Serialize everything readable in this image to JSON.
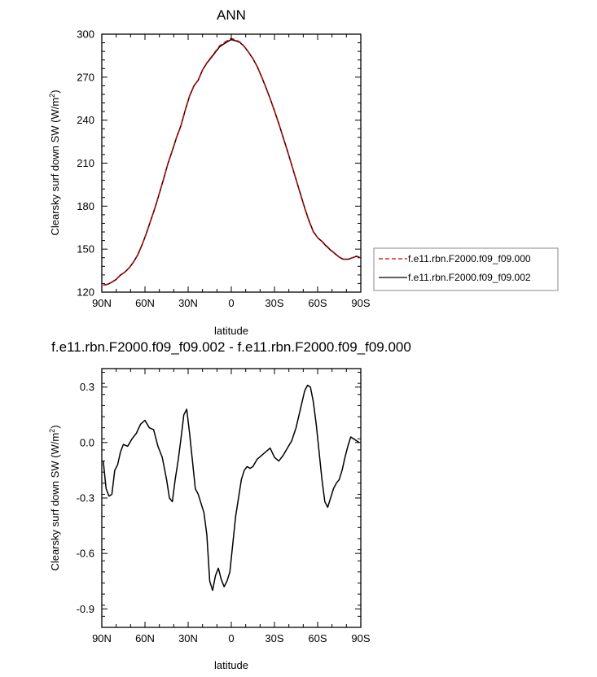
{
  "chart_data": [
    {
      "type": "line",
      "title": "ANN",
      "xlabel": "latitude",
      "ylabel_main": "Clearsky surf down SW (W/m",
      "ylabel_sup": "2",
      "ylabel_end": ")",
      "xlim": [
        90,
        -90
      ],
      "ylim": [
        120,
        300
      ],
      "xticks": [
        90,
        60,
        30,
        0,
        -30,
        -60,
        -90
      ],
      "xtick_labels": [
        "90N",
        "60N",
        "30N",
        "0",
        "30S",
        "60S",
        "90S"
      ],
      "yticks": [
        120,
        150,
        180,
        210,
        240,
        270,
        300
      ],
      "ytick_labels": [
        "120",
        "150",
        "180",
        "210",
        "240",
        "270",
        "300"
      ],
      "legend_position": "right",
      "series": [
        {
          "name": "f.e11.rbn.F2000.f09_f09.000",
          "color": "#cc0000",
          "dash": "dashed",
          "x": [
            89,
            86,
            83,
            80,
            77,
            74,
            71,
            68,
            65,
            62,
            59,
            56,
            53,
            50,
            47,
            44,
            41,
            38,
            35,
            32,
            29,
            26,
            23,
            20,
            17,
            14,
            11,
            8,
            5,
            2,
            0,
            -3,
            -6,
            -9,
            -12,
            -15,
            -18,
            -21,
            -24,
            -27,
            -30,
            -33,
            -36,
            -39,
            -42,
            -45,
            -48,
            -51,
            -54,
            -57,
            -60,
            -63,
            -66,
            -69,
            -72,
            -75,
            -78,
            -81,
            -84,
            -87,
            -89
          ],
          "y": [
            125,
            125.5,
            127,
            129,
            132,
            134,
            137,
            141,
            146,
            153,
            161,
            170,
            179,
            189,
            199,
            210,
            219,
            228,
            236,
            247,
            257,
            264,
            268,
            275,
            280,
            284,
            288,
            292,
            294,
            296,
            297,
            296,
            294.5,
            291.5,
            287.5,
            283,
            277.5,
            270.5,
            263,
            255,
            246.5,
            237.5,
            228,
            218.5,
            208.5,
            198.5,
            188.5,
            178.5,
            169.5,
            162,
            158,
            155.5,
            152.5,
            149.5,
            147,
            144.5,
            143,
            143,
            144,
            145,
            144.5
          ]
        },
        {
          "name": "f.e11.rbn.F2000.f09_f09.002",
          "color": "#000000",
          "dash": "solid",
          "x": [
            89,
            86,
            83,
            80,
            77,
            74,
            71,
            68,
            65,
            62,
            59,
            56,
            53,
            50,
            47,
            44,
            41,
            38,
            35,
            32,
            29,
            26,
            23,
            20,
            17,
            14,
            11,
            8,
            5,
            2,
            0,
            -3,
            -6,
            -9,
            -12,
            -15,
            -18,
            -21,
            -24,
            -27,
            -30,
            -33,
            -36,
            -39,
            -42,
            -45,
            -48,
            -51,
            -54,
            -57,
            -60,
            -63,
            -66,
            -69,
            -72,
            -75,
            -78,
            -81,
            -84,
            -87,
            -89
          ],
          "y": [
            124.9,
            125.4,
            126.9,
            128.9,
            131.9,
            133.9,
            136.9,
            140.9,
            146.1,
            153.1,
            161.1,
            170.1,
            178.9,
            188.9,
            199.2,
            209.8,
            218.7,
            228.1,
            236.2,
            247.1,
            256.8,
            263.9,
            267.9,
            275,
            279.8,
            283.6,
            287.5,
            291.3,
            293.3,
            295.2,
            296.2,
            295.4,
            294.2,
            291.4,
            287.4,
            282.9,
            277.4,
            270.4,
            262.9,
            255,
            246.5,
            237.6,
            228.1,
            218.6,
            208.6,
            198.6,
            188.7,
            178.8,
            169.8,
            162.3,
            158,
            155.3,
            152.1,
            149.3,
            146.9,
            144.4,
            142.9,
            142.9,
            143.9,
            145,
            144.5
          ]
        }
      ]
    },
    {
      "type": "line",
      "title": "f.e11.rbn.F2000.f09_f09.002 - f.e11.rbn.F2000.f09_f09.000",
      "xlabel": "latitude",
      "ylabel_main": "Clearsky surf down SW (W/m",
      "ylabel_sup": "2",
      "ylabel_end": ")",
      "xlim": [
        90,
        -90
      ],
      "ylim": [
        -1.0,
        0.4
      ],
      "xticks": [
        90,
        60,
        30,
        0,
        -30,
        -60,
        -90
      ],
      "xtick_labels": [
        "90N",
        "60N",
        "30N",
        "0",
        "30S",
        "60S",
        "90S"
      ],
      "yticks": [
        -0.9,
        -0.6,
        -0.3,
        0.0,
        0.3
      ],
      "ytick_labels": [
        "-0.9",
        "-0.6",
        "-0.3",
        "0.0",
        "0.3"
      ],
      "series": [
        {
          "color": "#000000",
          "dash": "solid",
          "x": [
            89,
            87,
            85,
            83,
            81,
            79,
            77,
            75,
            72,
            69,
            66,
            63,
            60,
            57,
            54,
            51,
            48,
            45,
            43,
            41,
            39,
            37,
            35,
            33,
            31,
            29,
            27,
            25,
            23,
            21,
            19,
            17,
            15,
            13,
            11,
            9,
            7,
            5,
            3,
            1,
            -1,
            -3,
            -5,
            -7,
            -9,
            -11,
            -13,
            -15,
            -18,
            -21,
            -24,
            -27,
            -30,
            -33,
            -36,
            -39,
            -42,
            -45,
            -48,
            -51,
            -53,
            -55,
            -57,
            -59,
            -61,
            -63,
            -65,
            -67,
            -69,
            -71,
            -73,
            -75,
            -77,
            -79,
            -81,
            -83,
            -85,
            -87,
            -89
          ],
          "y": [
            -0.1,
            -0.25,
            -0.29,
            -0.28,
            -0.15,
            -0.12,
            -0.05,
            -0.01,
            -0.02,
            0.02,
            0.05,
            0.1,
            0.12,
            0.08,
            0.07,
            -0.02,
            -0.08,
            -0.2,
            -0.3,
            -0.32,
            -0.2,
            -0.1,
            0.02,
            0.15,
            0.18,
            0.05,
            -0.1,
            -0.25,
            -0.28,
            -0.33,
            -0.38,
            -0.5,
            -0.75,
            -0.8,
            -0.72,
            -0.68,
            -0.74,
            -0.78,
            -0.75,
            -0.7,
            -0.55,
            -0.4,
            -0.3,
            -0.2,
            -0.15,
            -0.13,
            -0.14,
            -0.13,
            -0.09,
            -0.07,
            -0.05,
            -0.03,
            -0.08,
            -0.1,
            -0.07,
            -0.03,
            0.01,
            0.08,
            0.18,
            0.28,
            0.31,
            0.3,
            0.22,
            0.1,
            -0.05,
            -0.2,
            -0.32,
            -0.35,
            -0.3,
            -0.25,
            -0.22,
            -0.2,
            -0.15,
            -0.08,
            -0.02,
            0.03,
            0.02,
            0.01,
            0.0
          ]
        }
      ]
    }
  ]
}
